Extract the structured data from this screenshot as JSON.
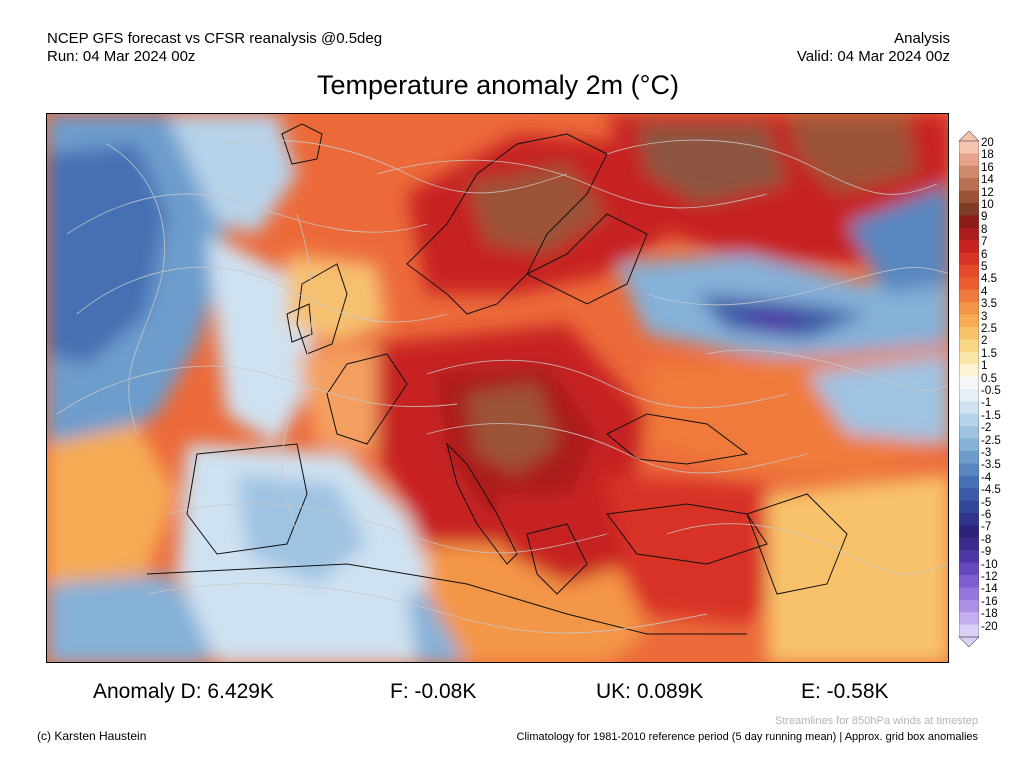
{
  "header": {
    "left_line1": "NCEP GFS forecast vs CFSR reanalysis @0.5deg",
    "left_line2": "Run: 04 Mar 2024 00z",
    "right_line1": "Analysis",
    "right_line2": "Valid: 04 Mar 2024 00z"
  },
  "title": "Temperature anomaly 2m (°C)",
  "colorbar": {
    "labels": [
      "20",
      "18",
      "16",
      "14",
      "12",
      "10",
      "9",
      "8",
      "7",
      "6",
      "5",
      "4.5",
      "4",
      "3.5",
      "3",
      "2.5",
      "2",
      "1.5",
      "1",
      "0.5",
      "-0.5",
      "-1",
      "-1.5",
      "-2",
      "-2.5",
      "-3",
      "-3.5",
      "-4",
      "-4.5",
      "-5",
      "-6",
      "-7",
      "-8",
      "-9",
      "-10",
      "-12",
      "-14",
      "-16",
      "-18",
      "-20"
    ],
    "colors": [
      "#f7c4ad",
      "#e6a48a",
      "#cf8a6d",
      "#b8704f",
      "#9c5338",
      "#7f3b25",
      "#8d1c16",
      "#ab1d1d",
      "#c72320",
      "#d83325",
      "#e54a2b",
      "#ec5e32",
      "#f07a3b",
      "#f49647",
      "#f6ab55",
      "#f8c26a",
      "#f9d586",
      "#fae6a8",
      "#fbf3d4",
      "#f6f6f6",
      "#e6f0f8",
      "#cfe2f1",
      "#b7d3ea",
      "#9fc3e2",
      "#86b1d8",
      "#6d9dcd",
      "#5887c0",
      "#4570b3",
      "#3a5ba6",
      "#33489a",
      "#2f348a",
      "#2a2379",
      "#3a2a8c",
      "#4f37a6",
      "#6648bd",
      "#7f5ccf",
      "#9675dc",
      "#ac90e6",
      "#c4adf0",
      "#ddd0f8"
    ]
  },
  "anomalies": {
    "d": "Anomaly D: 6.429K",
    "f": "F: -0.08K",
    "uk": "UK: 0.089K",
    "e": "E: -0.58K"
  },
  "footer": {
    "credit": "(c) Karsten Haustein",
    "climatology": "Climatology for 1981-2010 reference period (5 day running mean) | Approx. grid box anomalies",
    "streamlines": "Streamlines for 850hPa winds at timestep"
  }
}
